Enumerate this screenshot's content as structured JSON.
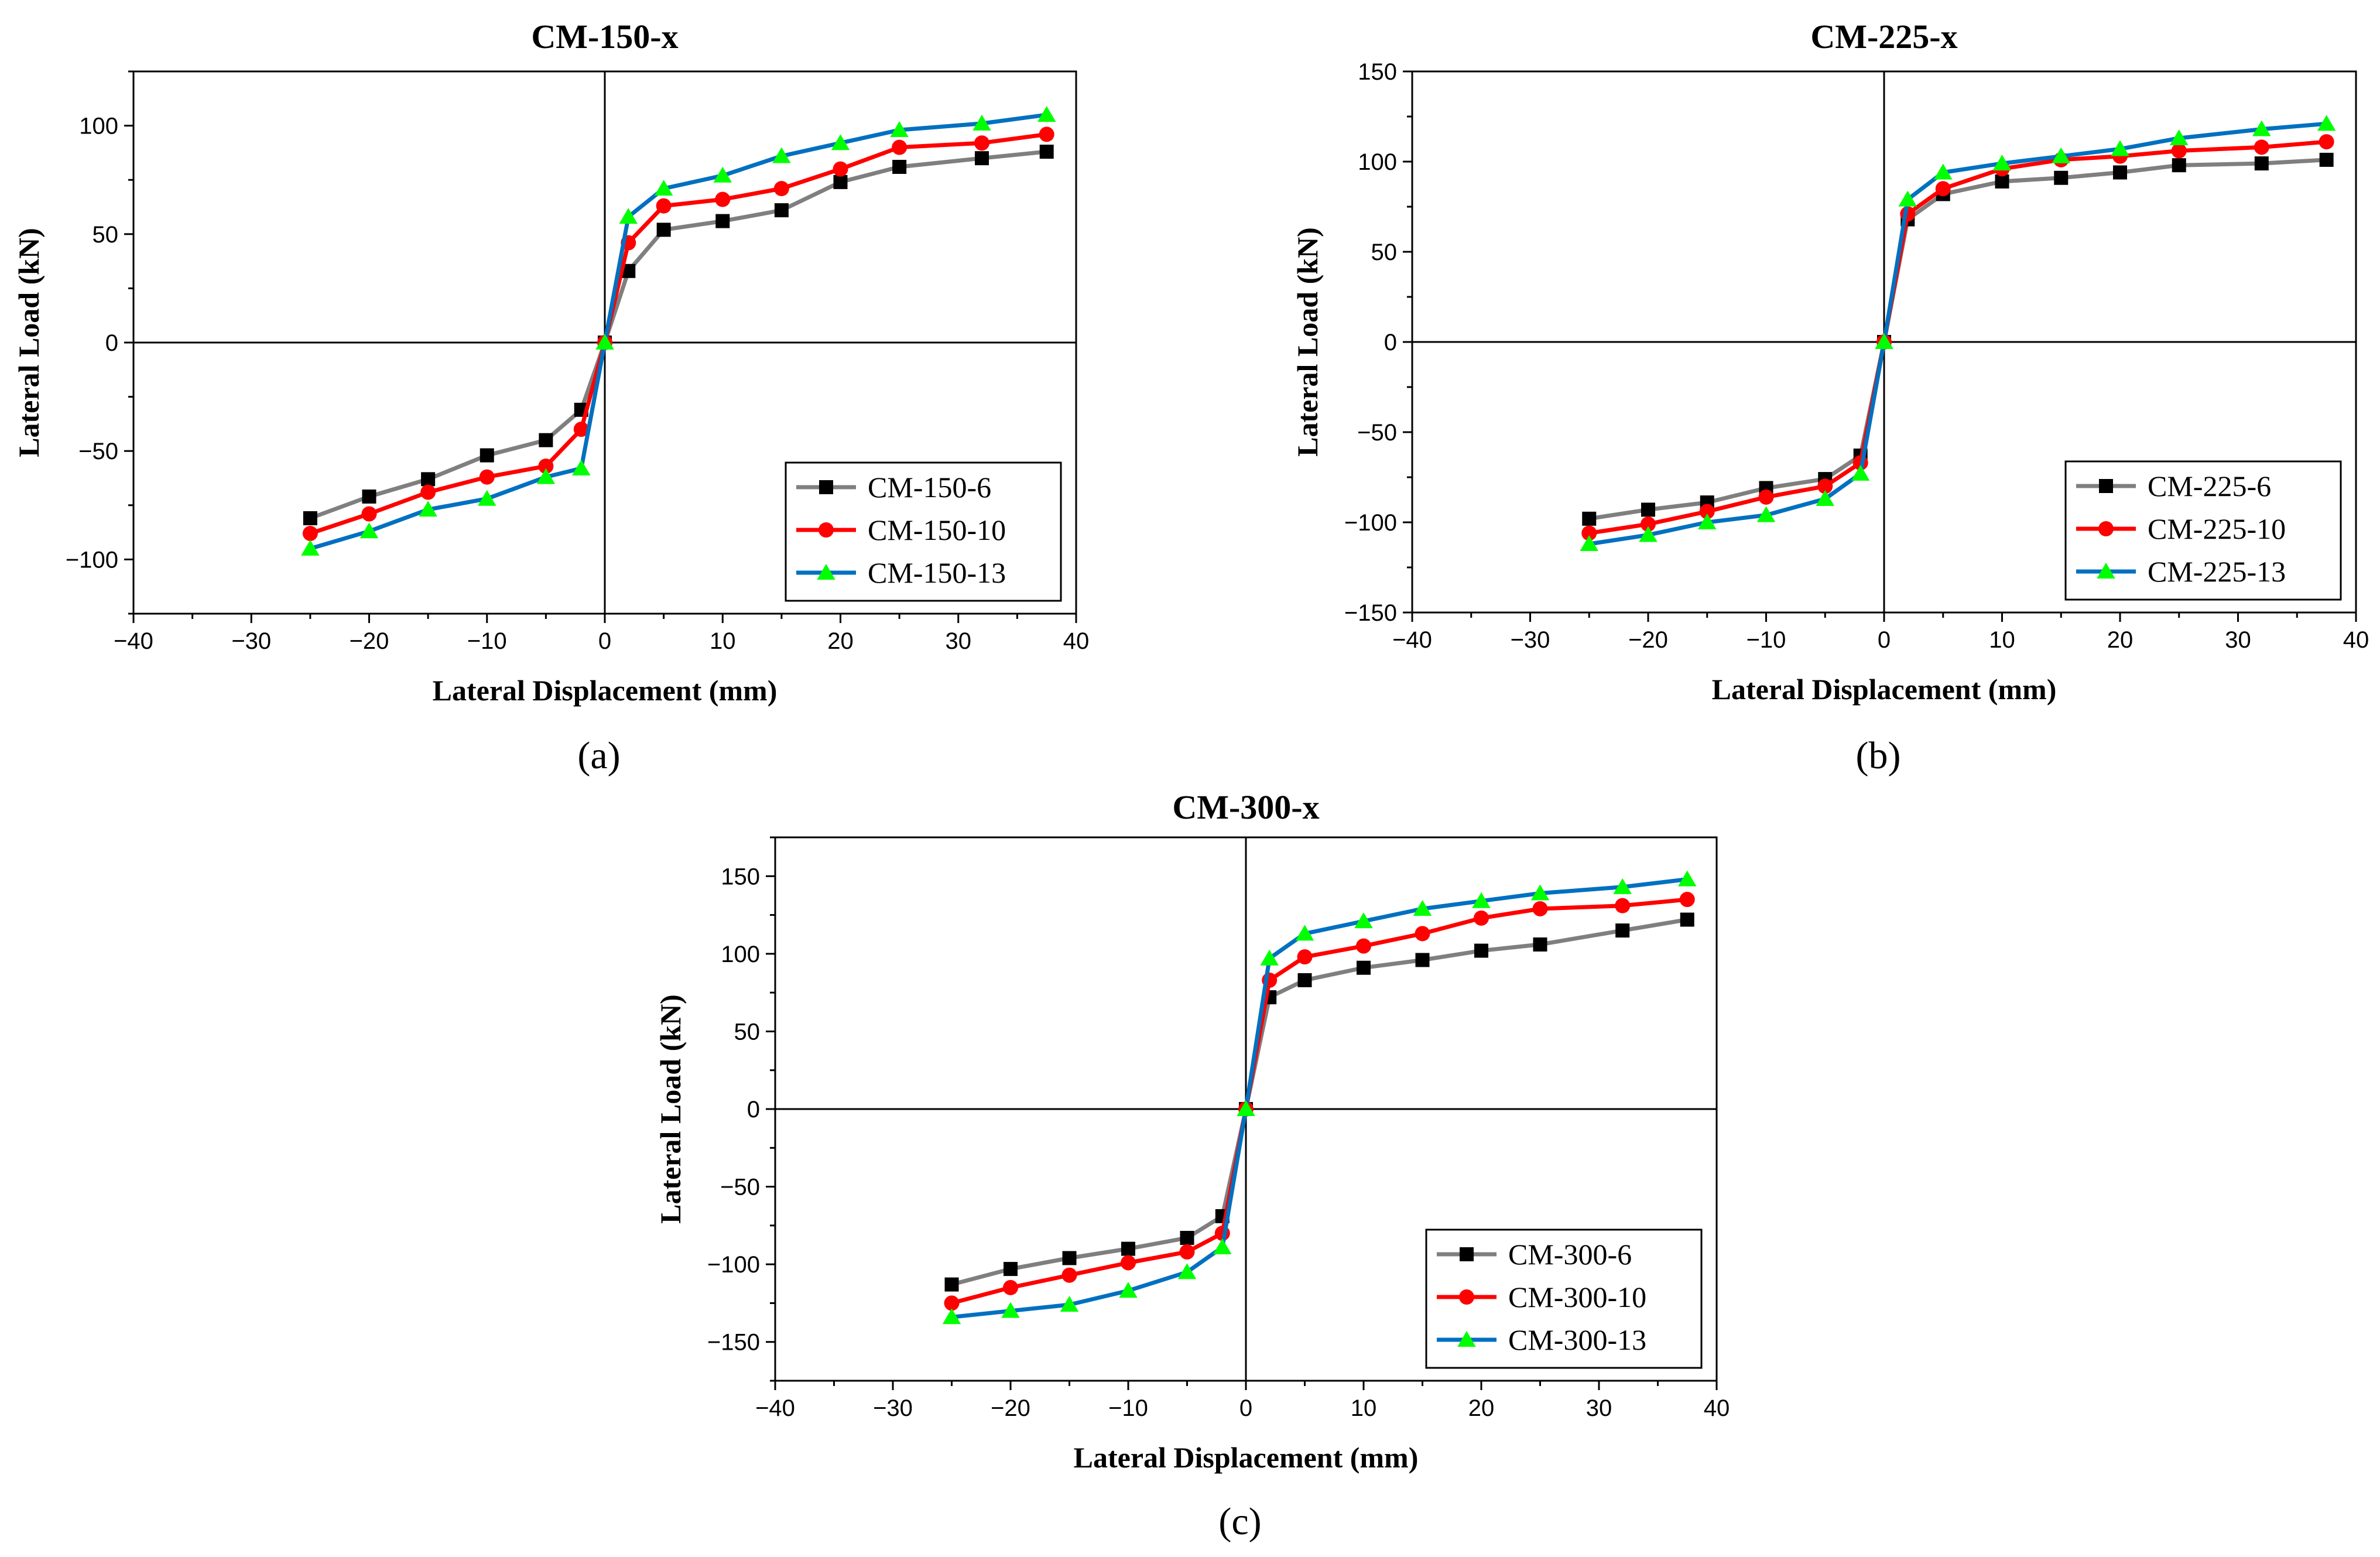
{
  "chart_data": [
    {
      "type": "line",
      "panel_label": "(a)",
      "title": "CM-150-x",
      "xlabel": "Lateral Displacement (mm)",
      "ylabel": "Lateral Load (kN)",
      "xlim": [
        -40,
        40
      ],
      "ylim": [
        -125,
        125
      ],
      "xticks": [
        -40,
        -30,
        -20,
        -10,
        0,
        10,
        20,
        30,
        40
      ],
      "yticks": [
        -100,
        -50,
        0,
        50,
        100
      ],
      "xtick_labels": [
        "−40",
        "−30",
        "−20",
        "−10",
        "0",
        "10",
        "20",
        "30",
        "40"
      ],
      "ytick_labels": [
        "−100",
        "−50",
        "0",
        "50",
        "100"
      ],
      "legend_position": "bottom-right",
      "series": [
        {
          "name": "CM-150-6",
          "color": "#7f7f7f",
          "marker_color": "#000000",
          "marker": "square",
          "x": [
            -25,
            -20,
            -15,
            -10,
            -5,
            -2,
            0,
            2,
            5,
            10,
            15,
            20,
            25,
            32,
            37.5
          ],
          "y": [
            -81,
            -71,
            -63,
            -52,
            -45,
            -31,
            0,
            33,
            52,
            56,
            61,
            74,
            81,
            85,
            88
          ]
        },
        {
          "name": "CM-150-10",
          "color": "#ff0000",
          "marker_color": "#ff0000",
          "marker": "circle",
          "x": [
            -25,
            -20,
            -15,
            -10,
            -5,
            -2,
            0,
            2,
            5,
            10,
            15,
            20,
            25,
            32,
            37.5
          ],
          "y": [
            -88,
            -79,
            -69,
            -62,
            -57,
            -40,
            0,
            46,
            63,
            66,
            71,
            80,
            90,
            92,
            96
          ]
        },
        {
          "name": "CM-150-13",
          "color": "#0070c0",
          "marker_color": "#00ff00",
          "marker": "triangle",
          "x": [
            -25,
            -20,
            -15,
            -10,
            -5,
            -2,
            0,
            2,
            5,
            10,
            15,
            20,
            25,
            32,
            37.5
          ],
          "y": [
            -95,
            -87,
            -77,
            -72,
            -62,
            -58,
            0,
            58,
            71,
            77,
            86,
            92,
            98,
            101,
            105
          ]
        }
      ]
    },
    {
      "type": "line",
      "panel_label": "(b)",
      "title": "CM-225-x",
      "xlabel": "Lateral Displacement (mm)",
      "ylabel": "Lateral Load (kN)",
      "xlim": [
        -40,
        40
      ],
      "ylim": [
        -150,
        150
      ],
      "xticks": [
        -40,
        -30,
        -20,
        -10,
        0,
        10,
        20,
        30,
        40
      ],
      "yticks": [
        -150,
        -100,
        -50,
        0,
        50,
        100,
        150
      ],
      "xtick_labels": [
        "−40",
        "−30",
        "−20",
        "−10",
        "0",
        "10",
        "20",
        "30",
        "40"
      ],
      "ytick_labels": [
        "−150",
        "−100",
        "−50",
        "0",
        "50",
        "100",
        "150"
      ],
      "legend_position": "bottom-right",
      "series": [
        {
          "name": "CM-225-6",
          "color": "#7f7f7f",
          "marker_color": "#000000",
          "marker": "square",
          "x": [
            -25,
            -20,
            -15,
            -10,
            -5,
            -2,
            0,
            2,
            5,
            10,
            15,
            20,
            25,
            32,
            37.5
          ],
          "y": [
            -98,
            -93,
            -89,
            -81,
            -76,
            -63,
            0,
            68,
            82,
            89,
            91,
            94,
            98,
            99,
            101
          ]
        },
        {
          "name": "CM-225-10",
          "color": "#ff0000",
          "marker_color": "#ff0000",
          "marker": "circle",
          "x": [
            -25,
            -20,
            -15,
            -10,
            -5,
            -2,
            0,
            2,
            5,
            10,
            15,
            20,
            25,
            32,
            37.5
          ],
          "y": [
            -106,
            -101,
            -94,
            -86,
            -80,
            -67,
            0,
            71,
            85,
            96,
            101,
            103,
            106,
            108,
            111
          ]
        },
        {
          "name": "CM-225-13",
          "color": "#0070c0",
          "marker_color": "#00ff00",
          "marker": "triangle",
          "x": [
            -25,
            -20,
            -15,
            -10,
            -5,
            -2,
            0,
            2,
            5,
            10,
            15,
            20,
            25,
            32,
            37.5
          ],
          "y": [
            -112,
            -107,
            -100,
            -96,
            -87,
            -73,
            0,
            79,
            94,
            99,
            103,
            107,
            113,
            118,
            121
          ]
        }
      ]
    },
    {
      "type": "line",
      "panel_label": "(c)",
      "title": "CM-300-x",
      "xlabel": "Lateral Displacement (mm)",
      "ylabel": "Lateral Load (kN)",
      "xlim": [
        -40,
        40
      ],
      "ylim": [
        -175,
        175
      ],
      "xticks": [
        -40,
        -30,
        -20,
        -10,
        0,
        10,
        20,
        30,
        40
      ],
      "yticks": [
        -150,
        -100,
        -50,
        0,
        50,
        100,
        150
      ],
      "xtick_labels": [
        "−40",
        "−30",
        "−20",
        "−10",
        "0",
        "10",
        "20",
        "30",
        "40"
      ],
      "ytick_labels": [
        "−150",
        "−100",
        "−50",
        "0",
        "50",
        "100",
        "150"
      ],
      "legend_position": "bottom-right",
      "series": [
        {
          "name": "CM-300-6",
          "color": "#7f7f7f",
          "marker_color": "#000000",
          "marker": "square",
          "x": [
            -25,
            -20,
            -15,
            -10,
            -5,
            -2,
            0,
            2,
            5,
            10,
            15,
            20,
            25,
            32,
            37.5
          ],
          "y": [
            -113,
            -103,
            -96,
            -90,
            -83,
            -69,
            0,
            72,
            83,
            91,
            96,
            102,
            106,
            115,
            122
          ]
        },
        {
          "name": "CM-300-10",
          "color": "#ff0000",
          "marker_color": "#ff0000",
          "marker": "circle",
          "x": [
            -25,
            -20,
            -15,
            -10,
            -5,
            -2,
            0,
            2,
            5,
            10,
            15,
            20,
            25,
            32,
            37.5
          ],
          "y": [
            -125,
            -115,
            -107,
            -99,
            -92,
            -80,
            0,
            83,
            98,
            105,
            113,
            123,
            129,
            131,
            135
          ]
        },
        {
          "name": "CM-300-13",
          "color": "#0070c0",
          "marker_color": "#00ff00",
          "marker": "triangle",
          "x": [
            -25,
            -20,
            -15,
            -10,
            -5,
            -2,
            0,
            2,
            5,
            10,
            15,
            20,
            25,
            32,
            37.5
          ],
          "y": [
            -134,
            -130,
            -126,
            -117,
            -105,
            -89,
            0,
            97,
            113,
            121,
            129,
            134,
            139,
            143,
            148
          ]
        }
      ]
    }
  ]
}
